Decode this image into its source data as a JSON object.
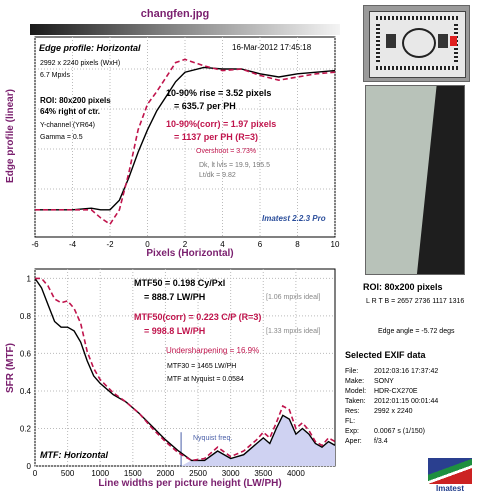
{
  "filename": "changfen.jpg",
  "edge_panel": {
    "title": "Edge profile: Horizontal",
    "datetime": "16-Mar-2012 17:45:18",
    "dims": "2992 x 2240 pixels (WxH)",
    "mpxls": "6.7 Mpxls",
    "roi": "ROI: 80x200 pixels",
    "roi_pos": "64% right of ctr.",
    "channel": "Y-channel  (YR64)",
    "gamma": "Gamma = 0.5",
    "rise": "10-90% rise = 3.52 pixels",
    "rise_ph": "= 635.7 per PH",
    "rise_corr": "10-90%(corr) = 1.97 pixels",
    "rise_corr_ph": "= 1137 per PH  (R=3)",
    "overshoot": "Overshoot = 3.73%",
    "dk_lt": "Dk, lt lvls = 19.9, 195.5",
    "lt_dk": "Lt/dk = 9.82",
    "version": "Imatest 2.2.3 Pro"
  },
  "mtf_panel": {
    "title": "MTF: Horizontal",
    "mtf50": "MTF50 = 0.198 Cy/Pxl",
    "mtf50_lw": "= 888.7 LW/PH",
    "mtf50_ideal": "[1.06 mpxls ideal]",
    "mtf50_corr": "MTF50(corr) = 0.223 C/P  (R=3)",
    "mtf50_corr_lw": "= 998.8 LW/PH",
    "mtf50_corr_ideal": "[1.33 mpxls ideal]",
    "undersharpening": "Undersharpening = 16.9%",
    "mtf30": "MTF30 = 1465 LW/PH",
    "nyquist_mtf": "MTF at Nyquist = 0.0584",
    "nyquist_label": "Nyquist freq."
  },
  "roi_caption": "ROI: 80x200 pixels",
  "roi_lrtb": "L R T B = 2657 2736  1117 1316",
  "edge_angle": "Edge angle = -5.72 degs",
  "exif": {
    "title": "Selected EXIF data",
    "rows": [
      {
        "label": "File:",
        "value": "2012:03:16 17:37:42"
      },
      {
        "label": "Make:",
        "value": "SONY"
      },
      {
        "label": "Model:",
        "value": "HDR-CX270E"
      },
      {
        "label": "Taken:",
        "value": "2012:01:15 00:01:44"
      },
      {
        "label": "Res:",
        "value": "2992 x 2240"
      },
      {
        "label": "FL:",
        "value": ""
      },
      {
        "label": "Exp:",
        "value": "0.0067 s  (1/150)"
      },
      {
        "label": "Aper:",
        "value": "f/3.4"
      }
    ]
  },
  "logo_text": "Imatest",
  "colors": {
    "series_main": "#000000",
    "series_corr": "#c0144c",
    "text_red": "#c0144c",
    "text_purple": "#7a1f6e",
    "nyquist": "#4a5fa8",
    "fill": "#cfd2f2"
  },
  "chart_data": [
    {
      "type": "line",
      "title": "",
      "xlabel": "Pixels (Horizontal)",
      "ylabel": "Edge profile (linear)",
      "xlim": [
        -6,
        10
      ],
      "x_ticks": [
        "-6",
        "-4",
        "-2",
        "0",
        "2",
        "4",
        "6",
        "8",
        "10"
      ],
      "grid": true,
      "series": [
        {
          "style": "solid",
          "x": [
            -6,
            -5,
            -4,
            -3,
            -2.5,
            -2,
            -1.5,
            -1,
            -0.5,
            0,
            0.5,
            1,
            1.5,
            2,
            3,
            4,
            5,
            6,
            7,
            8,
            9,
            10
          ],
          "y": [
            0.12,
            0.12,
            0.12,
            0.13,
            0.12,
            0.12,
            0.18,
            0.32,
            0.48,
            0.62,
            0.74,
            0.83,
            0.92,
            0.98,
            1.01,
            1.0,
            1.0,
            0.97,
            0.95,
            0.97,
            0.98,
            0.99
          ]
        },
        {
          "style": "dashed",
          "x": [
            -6,
            -5,
            -4,
            -3,
            -2.5,
            -2,
            -1.5,
            -1,
            -0.5,
            0,
            0.5,
            1,
            1.5,
            2,
            3,
            4,
            5,
            6,
            7,
            8,
            9,
            10
          ],
          "y": [
            0.12,
            0.12,
            0.12,
            0.12,
            0.07,
            0.03,
            0.12,
            0.35,
            0.62,
            0.78,
            0.86,
            0.95,
            1.04,
            1.06,
            1.02,
            0.99,
            1.0,
            0.96,
            0.93,
            0.95,
            0.97,
            0.98
          ]
        }
      ]
    },
    {
      "type": "line",
      "title": "MTF: Horizontal",
      "xlabel": "Line widths per picture height (LW/PH)",
      "ylabel": "SFR (MTF)",
      "xlim": [
        0,
        4600
      ],
      "ylim": [
        0,
        1.05
      ],
      "x_ticks": [
        "0",
        "500",
        "1000",
        "1500",
        "2000",
        "2500",
        "3000",
        "3500",
        "4000"
      ],
      "y_ticks": [
        "0",
        "0.2",
        "0.4",
        "0.6",
        "0.8",
        "1"
      ],
      "grid": true,
      "nyquist_x": 2240,
      "series": [
        {
          "style": "solid",
          "x": [
            0,
            100,
            200,
            300,
            400,
            500,
            600,
            700,
            800,
            900,
            1000,
            1200,
            1400,
            1600,
            1800,
            2000,
            2200,
            2400,
            2600,
            2800,
            3000,
            3200,
            3400,
            3500,
            3600,
            3700,
            3800,
            3900,
            4000,
            4100,
            4200,
            4300,
            4400,
            4500,
            4600
          ],
          "y": [
            1.0,
            0.95,
            0.86,
            0.77,
            0.74,
            0.74,
            0.72,
            0.66,
            0.56,
            0.48,
            0.44,
            0.38,
            0.34,
            0.28,
            0.21,
            0.14,
            0.08,
            0.03,
            0.03,
            0.08,
            0.04,
            0.06,
            0.12,
            0.15,
            0.12,
            0.2,
            0.27,
            0.25,
            0.17,
            0.2,
            0.17,
            0.12,
            0.1,
            0.13,
            0.11
          ]
        },
        {
          "style": "dashed",
          "x": [
            0,
            100,
            200,
            300,
            400,
            500,
            600,
            700,
            800,
            900,
            1000,
            1200,
            1400,
            1600,
            1800,
            2000,
            2200,
            2400,
            2600,
            2800,
            3000,
            3200,
            3400,
            3500,
            3600,
            3700,
            3800,
            3900,
            4000,
            4100,
            4200,
            4300,
            4400,
            4500,
            4600
          ],
          "y": [
            1.0,
            1.0,
            0.96,
            0.89,
            0.87,
            0.88,
            0.84,
            0.76,
            0.61,
            0.52,
            0.46,
            0.39,
            0.34,
            0.28,
            0.2,
            0.13,
            0.07,
            0.03,
            0.04,
            0.1,
            0.05,
            0.08,
            0.14,
            0.18,
            0.15,
            0.23,
            0.32,
            0.3,
            0.2,
            0.23,
            0.19,
            0.13,
            0.11,
            0.15,
            0.13
          ]
        }
      ]
    }
  ]
}
